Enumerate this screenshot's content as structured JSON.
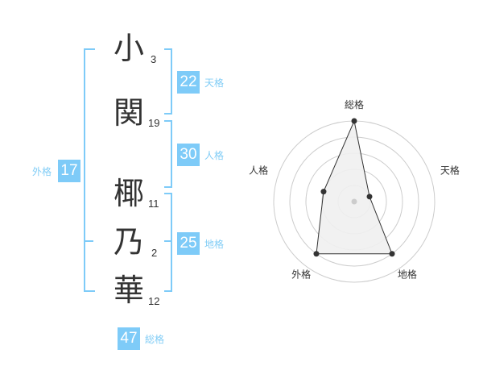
{
  "name": {
    "characters": [
      {
        "char": "小",
        "strokes": "3"
      },
      {
        "char": "関",
        "strokes": "19"
      },
      {
        "char": "椰",
        "strokes": "11"
      },
      {
        "char": "乃",
        "strokes": "2"
      },
      {
        "char": "華",
        "strokes": "12"
      }
    ]
  },
  "fortunes": {
    "tenkaku": {
      "label": "天格",
      "value": "22"
    },
    "jinkaku": {
      "label": "人格",
      "value": "30"
    },
    "chikaku": {
      "label": "地格",
      "value": "25"
    },
    "gaikaku": {
      "label": "外格",
      "value": "17"
    },
    "soukaku": {
      "label": "総格",
      "value": "47"
    }
  },
  "colors": {
    "accent": "#7ecbf8",
    "radar_fill": "#f0f0f0",
    "radar_line": "#333333",
    "ring": "#cccccc"
  },
  "chart_data": {
    "type": "radar",
    "axes": [
      "総格",
      "天格",
      "地格",
      "外格",
      "人格"
    ],
    "values": [
      5,
      1,
      4,
      4,
      2
    ],
    "range": [
      0,
      5
    ],
    "rings": 5
  }
}
